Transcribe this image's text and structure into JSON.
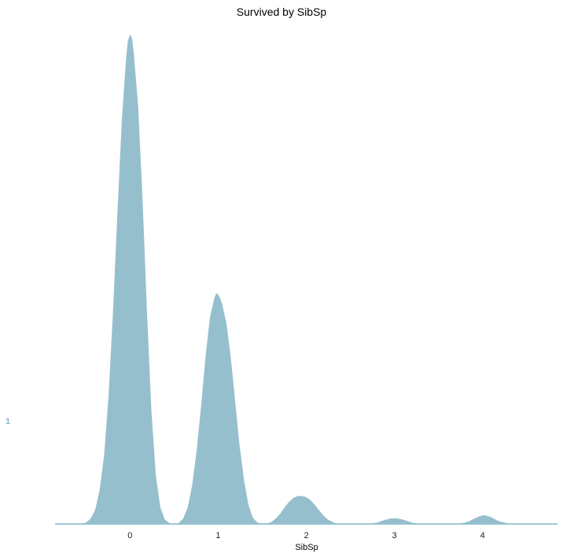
{
  "chart_data": {
    "type": "area",
    "title": "Survived by SibSp",
    "xlabel": "SibSp",
    "ylabel": "",
    "y_category_label": "1",
    "x_ticks": [
      0,
      1,
      2,
      3,
      4
    ],
    "x_tick_labels": [
      "0",
      "1",
      "2",
      "3",
      "4"
    ],
    "xlim": [
      -0.85,
      4.85
    ],
    "grid": false,
    "legend": "none",
    "series": [
      {
        "fill_color": "#96bfcd",
        "line_color": "#7fb6c8",
        "x": [
          -0.85,
          -0.6,
          -0.5,
          -0.45,
          -0.4,
          -0.35,
          -0.3,
          -0.25,
          -0.2,
          -0.15,
          -0.1,
          -0.05,
          -0.03,
          0.0,
          0.03,
          0.05,
          0.1,
          0.15,
          0.2,
          0.25,
          0.3,
          0.35,
          0.4,
          0.45,
          0.5,
          0.55,
          0.6,
          0.65,
          0.7,
          0.75,
          0.8,
          0.85,
          0.9,
          0.95,
          0.97,
          1.0,
          1.03,
          1.05,
          1.1,
          1.15,
          1.2,
          1.25,
          1.3,
          1.35,
          1.4,
          1.45,
          1.5,
          1.55,
          1.6,
          1.65,
          1.7,
          1.75,
          1.8,
          1.85,
          1.9,
          1.95,
          2.0,
          2.05,
          2.1,
          2.15,
          2.2,
          2.25,
          2.3,
          2.35,
          2.4,
          2.5,
          2.6,
          2.7,
          2.8,
          2.85,
          2.9,
          2.95,
          3.0,
          3.05,
          3.1,
          3.15,
          3.2,
          3.3,
          3.4,
          3.5,
          3.6,
          3.7,
          3.8,
          3.85,
          3.9,
          3.95,
          4.0,
          4.05,
          4.1,
          4.15,
          4.2,
          4.3,
          4.5,
          4.85
        ],
        "y": [
          0,
          0,
          0.004,
          0.012,
          0.03,
          0.07,
          0.14,
          0.26,
          0.43,
          0.63,
          0.82,
          0.95,
          0.985,
          1.0,
          0.99,
          0.96,
          0.85,
          0.66,
          0.43,
          0.23,
          0.1,
          0.035,
          0.01,
          0.003,
          0.001,
          0.003,
          0.012,
          0.035,
          0.08,
          0.15,
          0.24,
          0.34,
          0.42,
          0.46,
          0.47,
          0.47,
          0.46,
          0.45,
          0.41,
          0.34,
          0.25,
          0.16,
          0.09,
          0.04,
          0.013,
          0.004,
          0.002,
          0.002,
          0.005,
          0.012,
          0.022,
          0.035,
          0.046,
          0.054,
          0.058,
          0.058,
          0.056,
          0.05,
          0.04,
          0.029,
          0.018,
          0.01,
          0.005,
          0.002,
          0.001,
          0,
          0,
          0.001,
          0.004,
          0.007,
          0.01,
          0.012,
          0.013,
          0.012,
          0.01,
          0.007,
          0.004,
          0.001,
          0,
          0,
          0,
          0.001,
          0.004,
          0.007,
          0.012,
          0.016,
          0.019,
          0.018,
          0.015,
          0.01,
          0.006,
          0.002,
          0,
          0
        ]
      }
    ]
  }
}
